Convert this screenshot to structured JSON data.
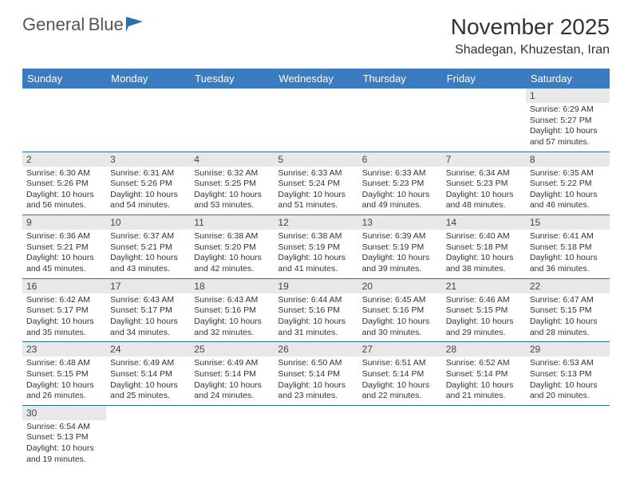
{
  "logo": {
    "text1": "General",
    "text2": "Blue",
    "text1_color": "#6a6a6a",
    "text2_color": "#2f6fa8",
    "icon_color": "#2f6fa8"
  },
  "title": "November 2025",
  "location": "Shadegan, Khuzestan, Iran",
  "colors": {
    "header_bg": "#3b7bbf",
    "header_text": "#ffffff",
    "daynum_bg": "#e8e8e8",
    "daynum_text": "#444444",
    "cell_border": "#2f6fa8",
    "body_text": "#333333",
    "page_bg": "#ffffff"
  },
  "fonts": {
    "title_size": 28,
    "location_size": 16,
    "header_size": 13,
    "daynum_size": 12,
    "content_size": 10.5
  },
  "day_headers": [
    "Sunday",
    "Monday",
    "Tuesday",
    "Wednesday",
    "Thursday",
    "Friday",
    "Saturday"
  ],
  "weeks": [
    [
      null,
      null,
      null,
      null,
      null,
      null,
      {
        "n": "1",
        "sunrise": "6:29 AM",
        "sunset": "5:27 PM",
        "daylight": "10 hours and 57 minutes."
      }
    ],
    [
      {
        "n": "2",
        "sunrise": "6:30 AM",
        "sunset": "5:26 PM",
        "daylight": "10 hours and 56 minutes."
      },
      {
        "n": "3",
        "sunrise": "6:31 AM",
        "sunset": "5:26 PM",
        "daylight": "10 hours and 54 minutes."
      },
      {
        "n": "4",
        "sunrise": "6:32 AM",
        "sunset": "5:25 PM",
        "daylight": "10 hours and 53 minutes."
      },
      {
        "n": "5",
        "sunrise": "6:33 AM",
        "sunset": "5:24 PM",
        "daylight": "10 hours and 51 minutes."
      },
      {
        "n": "6",
        "sunrise": "6:33 AM",
        "sunset": "5:23 PM",
        "daylight": "10 hours and 49 minutes."
      },
      {
        "n": "7",
        "sunrise": "6:34 AM",
        "sunset": "5:23 PM",
        "daylight": "10 hours and 48 minutes."
      },
      {
        "n": "8",
        "sunrise": "6:35 AM",
        "sunset": "5:22 PM",
        "daylight": "10 hours and 46 minutes."
      }
    ],
    [
      {
        "n": "9",
        "sunrise": "6:36 AM",
        "sunset": "5:21 PM",
        "daylight": "10 hours and 45 minutes."
      },
      {
        "n": "10",
        "sunrise": "6:37 AM",
        "sunset": "5:21 PM",
        "daylight": "10 hours and 43 minutes."
      },
      {
        "n": "11",
        "sunrise": "6:38 AM",
        "sunset": "5:20 PM",
        "daylight": "10 hours and 42 minutes."
      },
      {
        "n": "12",
        "sunrise": "6:38 AM",
        "sunset": "5:19 PM",
        "daylight": "10 hours and 41 minutes."
      },
      {
        "n": "13",
        "sunrise": "6:39 AM",
        "sunset": "5:19 PM",
        "daylight": "10 hours and 39 minutes."
      },
      {
        "n": "14",
        "sunrise": "6:40 AM",
        "sunset": "5:18 PM",
        "daylight": "10 hours and 38 minutes."
      },
      {
        "n": "15",
        "sunrise": "6:41 AM",
        "sunset": "5:18 PM",
        "daylight": "10 hours and 36 minutes."
      }
    ],
    [
      {
        "n": "16",
        "sunrise": "6:42 AM",
        "sunset": "5:17 PM",
        "daylight": "10 hours and 35 minutes."
      },
      {
        "n": "17",
        "sunrise": "6:43 AM",
        "sunset": "5:17 PM",
        "daylight": "10 hours and 34 minutes."
      },
      {
        "n": "18",
        "sunrise": "6:43 AM",
        "sunset": "5:16 PM",
        "daylight": "10 hours and 32 minutes."
      },
      {
        "n": "19",
        "sunrise": "6:44 AM",
        "sunset": "5:16 PM",
        "daylight": "10 hours and 31 minutes."
      },
      {
        "n": "20",
        "sunrise": "6:45 AM",
        "sunset": "5:16 PM",
        "daylight": "10 hours and 30 minutes."
      },
      {
        "n": "21",
        "sunrise": "6:46 AM",
        "sunset": "5:15 PM",
        "daylight": "10 hours and 29 minutes."
      },
      {
        "n": "22",
        "sunrise": "6:47 AM",
        "sunset": "5:15 PM",
        "daylight": "10 hours and 28 minutes."
      }
    ],
    [
      {
        "n": "23",
        "sunrise": "6:48 AM",
        "sunset": "5:15 PM",
        "daylight": "10 hours and 26 minutes."
      },
      {
        "n": "24",
        "sunrise": "6:49 AM",
        "sunset": "5:14 PM",
        "daylight": "10 hours and 25 minutes."
      },
      {
        "n": "25",
        "sunrise": "6:49 AM",
        "sunset": "5:14 PM",
        "daylight": "10 hours and 24 minutes."
      },
      {
        "n": "26",
        "sunrise": "6:50 AM",
        "sunset": "5:14 PM",
        "daylight": "10 hours and 23 minutes."
      },
      {
        "n": "27",
        "sunrise": "6:51 AM",
        "sunset": "5:14 PM",
        "daylight": "10 hours and 22 minutes."
      },
      {
        "n": "28",
        "sunrise": "6:52 AM",
        "sunset": "5:14 PM",
        "daylight": "10 hours and 21 minutes."
      },
      {
        "n": "29",
        "sunrise": "6:53 AM",
        "sunset": "5:13 PM",
        "daylight": "10 hours and 20 minutes."
      }
    ],
    [
      {
        "n": "30",
        "sunrise": "6:54 AM",
        "sunset": "5:13 PM",
        "daylight": "10 hours and 19 minutes."
      },
      null,
      null,
      null,
      null,
      null,
      null
    ]
  ],
  "labels": {
    "sunrise": "Sunrise:",
    "sunset": "Sunset:",
    "daylight": "Daylight:"
  }
}
